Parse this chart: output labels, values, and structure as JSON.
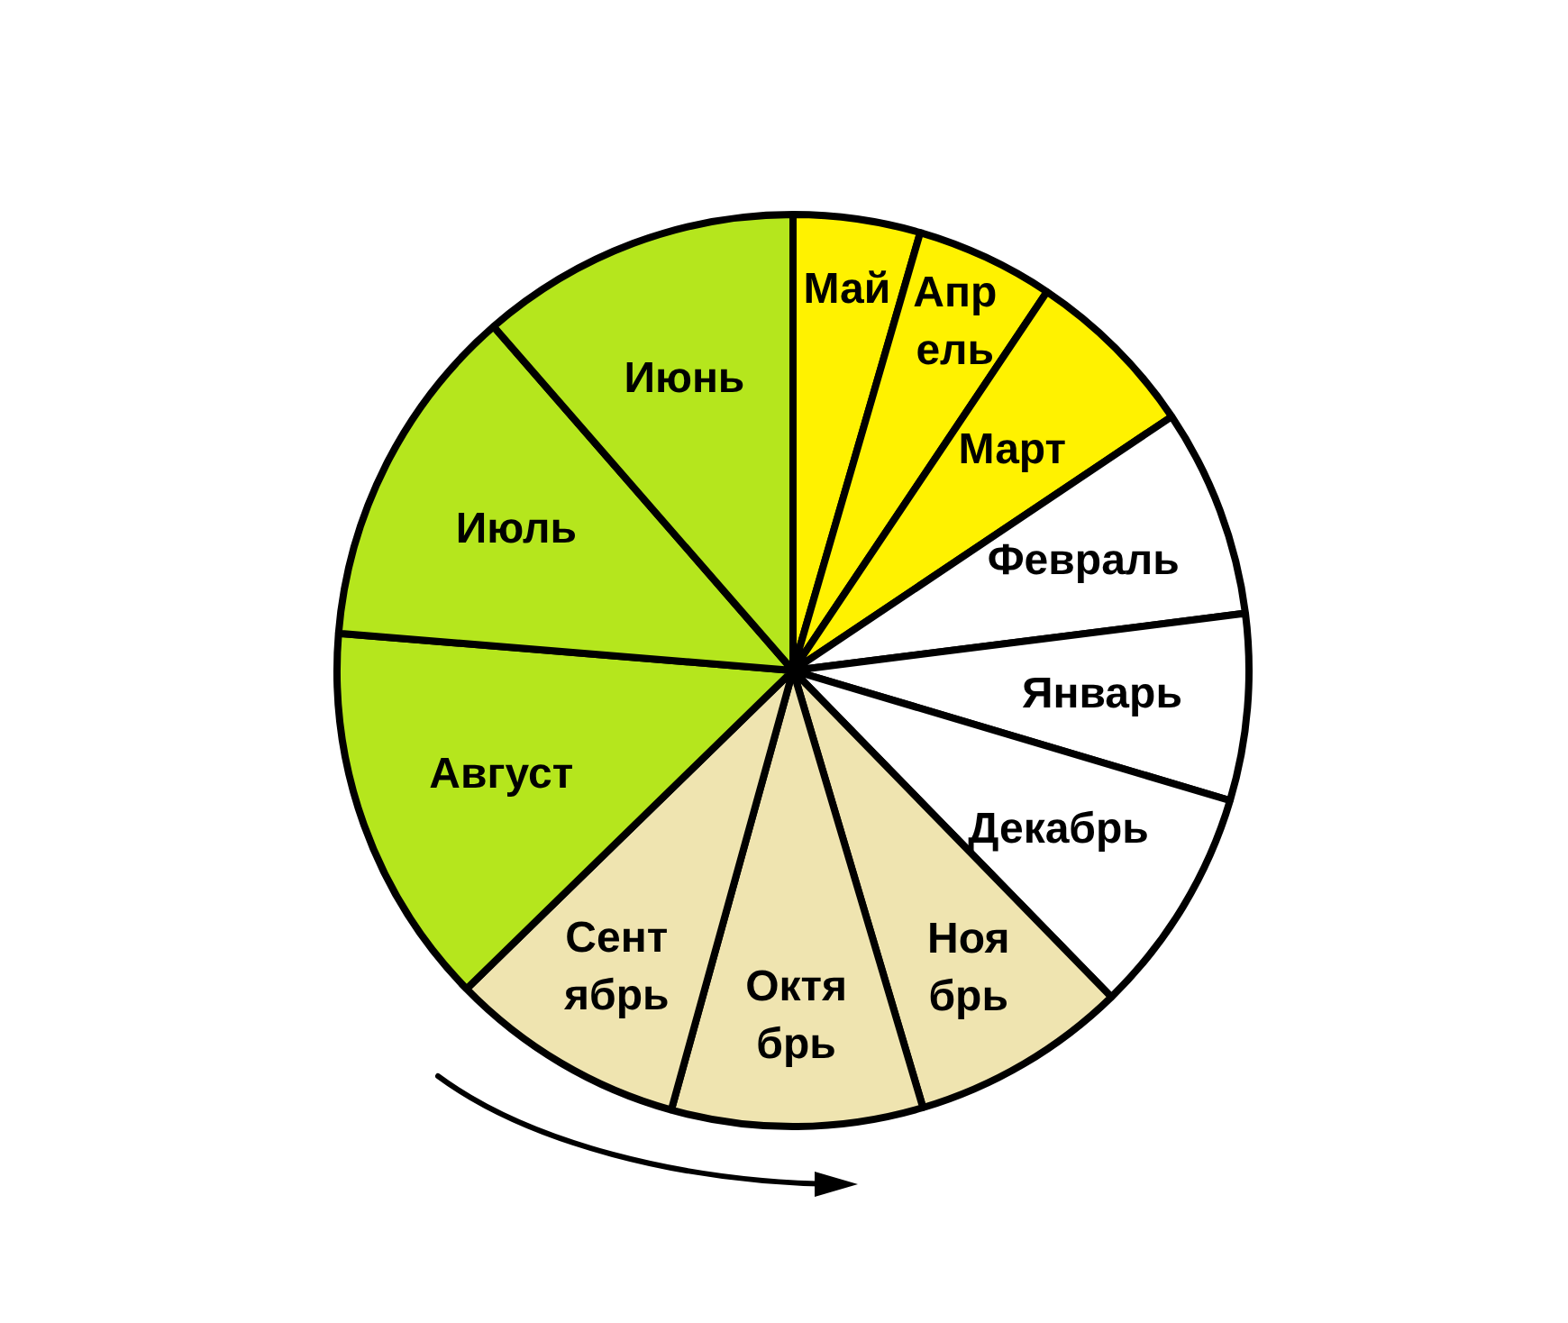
{
  "chart_data": {
    "type": "pie",
    "categories": [
      "Май",
      "Апр\nель",
      "Март",
      "Февраль",
      "Январь",
      "Декабрь",
      "Ноя\nбрь",
      "Октя\nбрь",
      "Сент\nябрь",
      "Август",
      "Июль",
      "Июнь"
    ],
    "values": [
      4.5,
      4.9,
      6.2,
      7.4,
      6.6,
      8.1,
      7.7,
      8.9,
      8.4,
      13.6,
      12.3,
      11.4
    ],
    "colors": [
      "#fff200",
      "#fff200",
      "#fff200",
      "#ffffff",
      "#ffffff",
      "#ffffff",
      "#efe4b0",
      "#efe4b0",
      "#efe4b0",
      "#b5e61d",
      "#b5e61d",
      "#b5e61d"
    ]
  }
}
